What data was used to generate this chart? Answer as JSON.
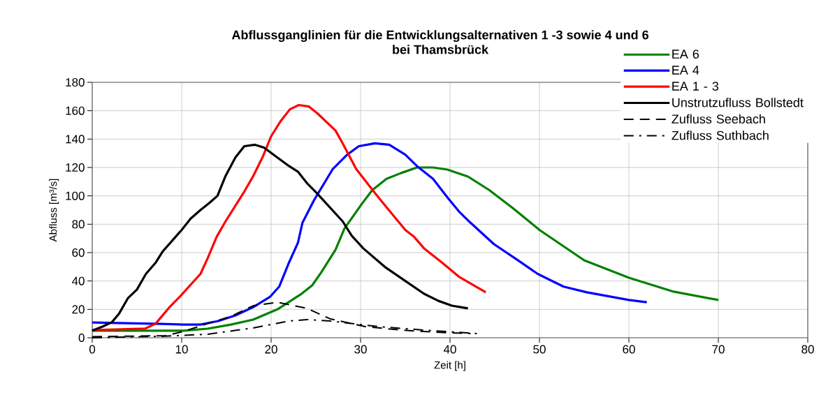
{
  "chart_data": {
    "type": "line",
    "title": "Abflussganglinien für die Entwicklungsalternativen 1 -3 sowie  4 und 6\nbei Thamsbrück",
    "xlabel": "Zeit [h]",
    "ylabel": "Abfluss [m³/s]",
    "xlim": [
      0,
      80
    ],
    "xticks": [
      0,
      10,
      20,
      30,
      40,
      50,
      60,
      70,
      80
    ],
    "ylim": [
      0,
      180
    ],
    "yticks": [
      0,
      20,
      40,
      60,
      80,
      100,
      120,
      140,
      160,
      180
    ],
    "grid": true,
    "legend": "top right",
    "marker": "none",
    "series": [
      {
        "name": "EA 6",
        "color": "#008000",
        "line_style": "solid",
        "x": [
          0,
          10.2,
          12.9,
          15.5,
          18,
          20.7,
          23.3,
          24.6,
          25.6,
          27.2,
          28.2,
          30.1,
          31.3,
          32.9,
          34.5,
          36.3,
          38.1,
          39.7,
          42,
          44.4,
          47,
          50,
          55,
          60,
          65,
          70
        ],
        "values": [
          5,
          5,
          6.4,
          9.3,
          12.8,
          20,
          30.5,
          37,
          46,
          62,
          77,
          94,
          104,
          112,
          116,
          120,
          120,
          118.5,
          113.6,
          104,
          91.5,
          76,
          54.6,
          42.3,
          32.5,
          26.6
        ]
      },
      {
        "name": "EA 4",
        "color": "#0000ff",
        "line_style": "solid",
        "x": [
          0,
          3.75,
          7.7,
          10.2,
          12.1,
          14.1,
          16,
          18,
          19.9,
          20.9,
          22,
          23,
          23.5,
          24.8,
          26.9,
          28.5,
          29.8,
          31.6,
          33.2,
          35,
          36.3,
          38.1,
          39.7,
          41,
          42.3,
          44.9,
          47.5,
          49.8,
          52.7,
          55.3,
          60,
          62
        ],
        "values": [
          10.8,
          10.3,
          9.8,
          9.3,
          9.3,
          11.8,
          15.7,
          21.6,
          29,
          36,
          53,
          67,
          81,
          97,
          119,
          129,
          135,
          137,
          136,
          129,
          121,
          112,
          99,
          89,
          81,
          66,
          55,
          45,
          36,
          32,
          26.6,
          25
        ]
      },
      {
        "name": "EA 1 - 3",
        "color": "#ff0000",
        "line_style": "solid",
        "x": [
          0,
          5.9,
          7.1,
          8.7,
          9.8,
          12.1,
          12.9,
          13.9,
          14.9,
          16,
          17,
          18,
          19.1,
          20,
          21.1,
          22.1,
          23.1,
          24.2,
          25.2,
          27.2,
          28,
          29.5,
          31.6,
          32.9,
          35,
          36,
          37.1,
          39.1,
          41,
          44
        ],
        "values": [
          5.4,
          6.4,
          10,
          22,
          29,
          45,
          56,
          71,
          82,
          93,
          103,
          114,
          128,
          142,
          153,
          161,
          164,
          163,
          158,
          146,
          137,
          119,
          102,
          92,
          76,
          71,
          63,
          53,
          43,
          32
        ]
      },
      {
        "name": "Unstrutzufluss Bollstedt",
        "color": "#000000",
        "line_style": "solid",
        "x": [
          0,
          1.2,
          2.2,
          3,
          4,
          5,
          6,
          7.1,
          7.9,
          10,
          11,
          12.1,
          13.1,
          14,
          14.9,
          16,
          17,
          18.2,
          19.2,
          20.7,
          22,
          23,
          24,
          25.1,
          28,
          29,
          30.3,
          32.7,
          35,
          37.1,
          38.7,
          40.2,
          42
        ],
        "values": [
          5,
          8,
          11,
          17,
          28,
          34,
          45,
          53,
          61,
          76,
          84,
          90,
          95,
          100,
          114,
          127,
          135,
          136,
          134,
          127,
          121,
          117,
          109,
          102,
          82,
          72,
          63,
          50,
          40,
          31,
          26,
          22.6,
          20.7
        ]
      },
      {
        "name": "Zufluss Seebach",
        "color": "#000000",
        "line_style": "dashed",
        "x": [
          0,
          8.2,
          10.2,
          12.9,
          15.5,
          18,
          20.7,
          23.3,
          24,
          26.6,
          30.5,
          34.5,
          38.4,
          42.3
        ],
        "values": [
          0.7,
          1.5,
          4.4,
          10,
          15,
          22.6,
          25,
          21.6,
          20.7,
          13.3,
          7.9,
          5.4,
          3.9,
          2.9
        ]
      },
      {
        "name": "Zufluss Suthbach",
        "color": "#000000",
        "line_style": "dashdot",
        "x": [
          0,
          7.7,
          12.9,
          18,
          22,
          24,
          26.6,
          31.9,
          37.1,
          43
        ],
        "values": [
          0,
          1,
          2.5,
          6.9,
          11.8,
          12.8,
          11.8,
          7.9,
          5.4,
          3
        ]
      }
    ]
  }
}
